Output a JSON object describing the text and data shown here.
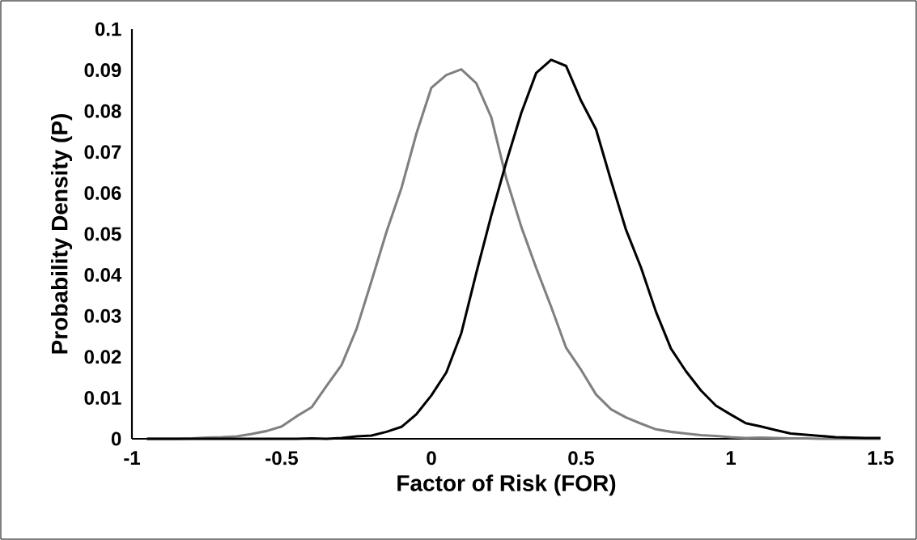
{
  "chart_data": {
    "type": "line",
    "xlabel": "Factor of Risk (FOR)",
    "ylabel": "Probability Density (P)",
    "xlim": [
      -1,
      1.5
    ],
    "ylim": [
      0,
      0.1
    ],
    "xticks": [
      -1,
      -0.5,
      0,
      0.5,
      1,
      1.5
    ],
    "yticks": [
      0,
      0.01,
      0.02,
      0.03,
      0.04,
      0.05,
      0.06,
      0.07,
      0.08,
      0.09,
      0.1
    ],
    "grid": false,
    "legend": false,
    "marker": "none",
    "line_style": "solid",
    "series": [
      {
        "color": "#808080",
        "x": [
          -0.95,
          -0.9,
          -0.85,
          -0.8,
          -0.75,
          -0.7,
          -0.65,
          -0.6,
          -0.55,
          -0.5,
          -0.45,
          -0.4,
          -0.35,
          -0.3,
          -0.25,
          -0.2,
          -0.15,
          -0.1,
          -0.05,
          0,
          0.05,
          0.1,
          0.15,
          0.2,
          0.25,
          0.3,
          0.35,
          0.4,
          0.45,
          0.5,
          0.55,
          0.6,
          0.65,
          0.7,
          0.75,
          0.8,
          0.85,
          0.9,
          0.95,
          1,
          1.05,
          1.1,
          1.15,
          1.2,
          1.25,
          1.3,
          1.35,
          1.4,
          1.45,
          1.5
        ],
        "values": [
          0,
          0,
          0,
          0.0001,
          0.0003,
          0.0004,
          0.0006,
          0.0012,
          0.0019,
          0.003,
          0.0055,
          0.0077,
          0.0129,
          0.018,
          0.0268,
          0.0385,
          0.0505,
          0.0612,
          0.0745,
          0.0857,
          0.0888,
          0.0902,
          0.0868,
          0.0785,
          0.0636,
          0.0518,
          0.0417,
          0.0322,
          0.0222,
          0.0168,
          0.0108,
          0.0072,
          0.0052,
          0.0037,
          0.0023,
          0.0017,
          0.0013,
          0.0009,
          0.0007,
          0.0004,
          0.0002,
          0.0003,
          0.0002,
          0.0001,
          0.0001,
          0,
          0,
          0,
          0,
          0
        ]
      },
      {
        "color": "#000000",
        "x": [
          -0.95,
          -0.9,
          -0.85,
          -0.8,
          -0.75,
          -0.7,
          -0.65,
          -0.6,
          -0.55,
          -0.5,
          -0.45,
          -0.4,
          -0.35,
          -0.3,
          -0.25,
          -0.2,
          -0.15,
          -0.1,
          -0.05,
          0,
          0.05,
          0.1,
          0.15,
          0.2,
          0.25,
          0.3,
          0.35,
          0.4,
          0.45,
          0.5,
          0.55,
          0.6,
          0.65,
          0.7,
          0.75,
          0.8,
          0.85,
          0.9,
          0.95,
          1,
          1.05,
          1.1,
          1.15,
          1.2,
          1.25,
          1.3,
          1.35,
          1.4,
          1.45,
          1.5
        ],
        "values": [
          0,
          0,
          0,
          0,
          0,
          0,
          0,
          0,
          0,
          0,
          0,
          0.0001,
          0,
          0.0002,
          0.0006,
          0.0008,
          0.0017,
          0.0029,
          0.006,
          0.0106,
          0.0162,
          0.0258,
          0.0405,
          0.0545,
          0.0675,
          0.0795,
          0.0893,
          0.0925,
          0.091,
          0.0825,
          0.0755,
          0.063,
          0.051,
          0.0418,
          0.031,
          0.022,
          0.0165,
          0.0118,
          0.0081,
          0.0059,
          0.0038,
          0.003,
          0.0021,
          0.0013,
          0.001,
          0.0007,
          0.0004,
          0.0003,
          0.0002,
          0.0002
        ]
      }
    ]
  }
}
